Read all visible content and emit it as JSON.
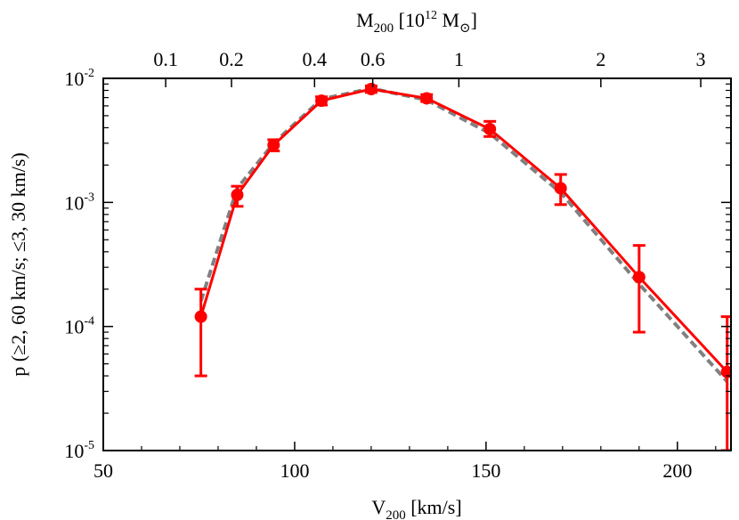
{
  "chart_data": {
    "type": "line",
    "xlabel": {
      "main": "V",
      "sub": "200",
      "rest": " [km/s]"
    },
    "ylabel": "p (≥2, 60 km/s;  ≤3, 30 km/s)",
    "top_axis_label": {
      "main": "M",
      "sub": "200",
      "mid": " [10",
      "sup": "12",
      "rest": " M",
      "sun": "⊙",
      "end": "]"
    },
    "xlim": [
      50,
      214
    ],
    "ylim": [
      1e-05,
      0.01
    ],
    "yscale": "log",
    "x_ticks": [
      {
        "value": 50,
        "label": "50"
      },
      {
        "value": 100,
        "label": "100"
      },
      {
        "value": 150,
        "label": "150"
      },
      {
        "value": 200,
        "label": "200"
      }
    ],
    "y_ticks": [
      {
        "value": 1e-05,
        "base": "10",
        "exp": "-5"
      },
      {
        "value": 0.0001,
        "base": "10",
        "exp": "-4"
      },
      {
        "value": 0.001,
        "base": "10",
        "exp": "-3"
      },
      {
        "value": 0.01,
        "base": "10",
        "exp": "-2"
      }
    ],
    "top_ticks": [
      {
        "v200": 66.3,
        "label": "0.1"
      },
      {
        "v200": 83.5,
        "label": "0.2"
      },
      {
        "v200": 105.2,
        "label": "0.4"
      },
      {
        "v200": 120.4,
        "label": "0.6"
      },
      {
        "v200": 142.9,
        "label": "1"
      },
      {
        "v200": 180.0,
        "label": "2"
      },
      {
        "v200": 206.1,
        "label": "3"
      }
    ],
    "series": [
      {
        "style": "red-points-line",
        "color": "#ff0000",
        "x": [
          75.5,
          85.0,
          94.5,
          107.0,
          120.0,
          134.5,
          151.0,
          169.5,
          190.0,
          213.0
        ],
        "y": [
          0.00012,
          0.00115,
          0.0029,
          0.0066,
          0.0082,
          0.0069,
          0.0039,
          0.0013,
          0.00025,
          4.3e-05
        ],
        "err_low": [
          4e-05,
          0.00093,
          0.0026,
          0.0061,
          0.0077,
          0.0065,
          0.0034,
          0.00096,
          9e-05,
          1e-05
        ],
        "err_high": [
          0.0002,
          0.00135,
          0.0032,
          0.0071,
          0.0087,
          0.0074,
          0.0045,
          0.00168,
          0.00045,
          0.00012
        ]
      },
      {
        "style": "gray-dashed",
        "color": "#808080",
        "x": [
          75.5,
          85.0,
          94.5,
          107.0,
          120.0,
          134.5,
          151.0,
          169.5,
          190.0,
          213.0
        ],
        "y": [
          0.00016,
          0.0013,
          0.003,
          0.0068,
          0.0083,
          0.0067,
          0.0036,
          0.0012,
          0.00022,
          3.6e-05
        ]
      }
    ]
  }
}
